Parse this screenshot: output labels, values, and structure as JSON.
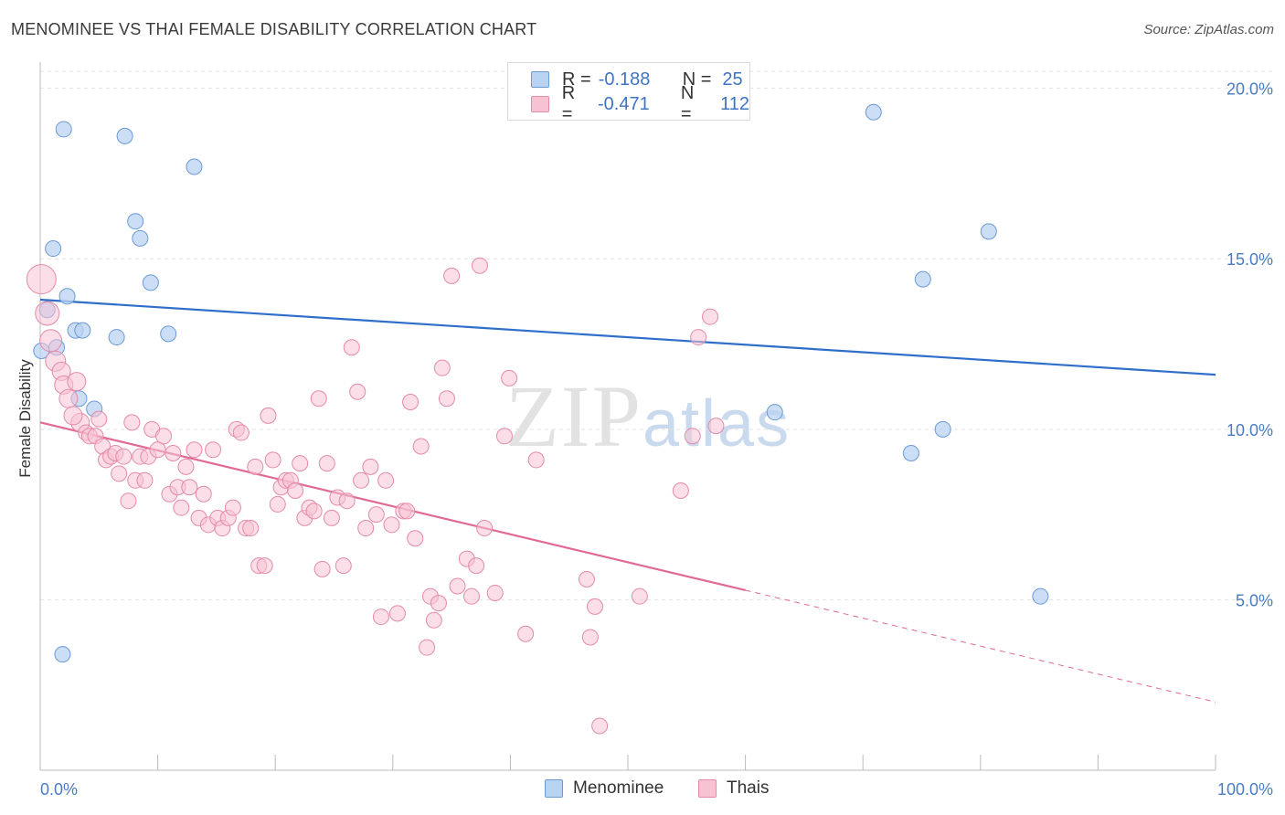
{
  "title": "MENOMINEE VS THAI FEMALE DISABILITY CORRELATION CHART",
  "source": "Source: ZipAtlas.com",
  "watermark": {
    "zip": "ZIP",
    "atlas": "atlas"
  },
  "colors": {
    "menominee_fill": "#b9d3f3",
    "menominee_stroke": "#6b9ad6",
    "menominee_line": "#2f6fcb",
    "thai_fill": "#f7c3d3",
    "thai_stroke": "#e58aa8",
    "thai_line": "#e06996",
    "tick_text": "#4a7cc4",
    "grid": "#e3e3e3"
  },
  "legend": {
    "rows": [
      {
        "r_label": "R =",
        "r_value": "-0.188",
        "n_label": "N =",
        "n_value": "25"
      },
      {
        "r_label": "R =",
        "r_value": "-0.471",
        "n_label": "N =",
        "n_value": "112"
      }
    ]
  },
  "bottom_legend": {
    "menominee": "Menominee",
    "thais": "Thais"
  },
  "chart_data": {
    "type": "scatter",
    "xlabel": "",
    "ylabel": "Female Disability",
    "xlim": [
      0,
      100
    ],
    "ylim": [
      0,
      20.5
    ],
    "x_tick_labels": [
      "0.0%",
      "100.0%"
    ],
    "y_ticks": [
      5,
      10,
      15,
      20
    ],
    "y_tick_labels": [
      "5.0%",
      "10.0%",
      "15.0%",
      "20.0%"
    ],
    "grid": true,
    "series": [
      {
        "name": "Menominee",
        "points": [
          [
            2.0,
            18.8
          ],
          [
            7.2,
            18.6
          ],
          [
            13.1,
            17.7
          ],
          [
            8.1,
            16.1
          ],
          [
            1.1,
            15.3
          ],
          [
            8.5,
            15.6
          ],
          [
            9.4,
            14.3
          ],
          [
            2.3,
            13.9
          ],
          [
            0.6,
            13.5
          ],
          [
            3.0,
            12.9
          ],
          [
            3.6,
            12.9
          ],
          [
            6.5,
            12.7
          ],
          [
            10.9,
            12.8
          ],
          [
            1.4,
            12.4
          ],
          [
            0.1,
            12.3
          ],
          [
            3.3,
            10.9
          ],
          [
            4.6,
            10.6
          ],
          [
            1.9,
            3.4
          ],
          [
            70.9,
            19.3
          ],
          [
            80.7,
            15.8
          ],
          [
            75.1,
            14.4
          ],
          [
            62.5,
            10.5
          ],
          [
            76.8,
            10.0
          ],
          [
            74.1,
            9.3
          ],
          [
            85.1,
            5.1
          ]
        ],
        "trend": {
          "x": [
            0,
            100
          ],
          "y": [
            13.8,
            11.6
          ],
          "dashed_from": null
        }
      },
      {
        "name": "Thais",
        "points": [
          [
            0.1,
            14.4
          ],
          [
            0.6,
            13.4
          ],
          [
            0.9,
            12.6
          ],
          [
            1.3,
            12.0
          ],
          [
            1.8,
            11.7
          ],
          [
            2.0,
            11.3
          ],
          [
            3.1,
            11.4
          ],
          [
            2.4,
            10.9
          ],
          [
            3.4,
            10.2
          ],
          [
            2.8,
            10.4
          ],
          [
            5.0,
            10.3
          ],
          [
            3.9,
            9.9
          ],
          [
            4.2,
            9.8
          ],
          [
            4.7,
            9.8
          ],
          [
            5.3,
            9.5
          ],
          [
            5.6,
            9.1
          ],
          [
            6.0,
            9.2
          ],
          [
            6.4,
            9.3
          ],
          [
            6.7,
            8.7
          ],
          [
            7.1,
            9.2
          ],
          [
            7.5,
            7.9
          ],
          [
            7.8,
            10.2
          ],
          [
            8.1,
            8.5
          ],
          [
            8.5,
            9.2
          ],
          [
            8.9,
            8.5
          ],
          [
            9.2,
            9.2
          ],
          [
            9.5,
            10.0
          ],
          [
            10.0,
            9.4
          ],
          [
            10.5,
            9.8
          ],
          [
            11.0,
            8.1
          ],
          [
            11.3,
            9.3
          ],
          [
            11.7,
            8.3
          ],
          [
            12.0,
            7.7
          ],
          [
            12.4,
            8.9
          ],
          [
            12.7,
            8.3
          ],
          [
            13.1,
            9.4
          ],
          [
            13.5,
            7.4
          ],
          [
            13.9,
            8.1
          ],
          [
            14.3,
            7.2
          ],
          [
            14.7,
            9.4
          ],
          [
            15.1,
            7.4
          ],
          [
            15.5,
            7.1
          ],
          [
            16.0,
            7.4
          ],
          [
            16.4,
            7.7
          ],
          [
            16.7,
            10.0
          ],
          [
            17.1,
            9.9
          ],
          [
            17.5,
            7.1
          ],
          [
            17.9,
            7.1
          ],
          [
            18.3,
            8.9
          ],
          [
            18.6,
            6.0
          ],
          [
            19.1,
            6.0
          ],
          [
            19.4,
            10.4
          ],
          [
            19.8,
            9.1
          ],
          [
            20.2,
            7.8
          ],
          [
            20.5,
            8.3
          ],
          [
            20.9,
            8.5
          ],
          [
            21.3,
            8.5
          ],
          [
            21.7,
            8.2
          ],
          [
            22.1,
            9.0
          ],
          [
            22.5,
            7.4
          ],
          [
            22.9,
            7.7
          ],
          [
            23.3,
            7.6
          ],
          [
            23.7,
            10.9
          ],
          [
            24.0,
            5.9
          ],
          [
            24.4,
            9.0
          ],
          [
            24.8,
            7.4
          ],
          [
            25.3,
            8.0
          ],
          [
            25.8,
            6.0
          ],
          [
            26.1,
            7.9
          ],
          [
            26.5,
            12.4
          ],
          [
            27.0,
            11.1
          ],
          [
            27.3,
            8.5
          ],
          [
            27.7,
            7.1
          ],
          [
            28.1,
            8.9
          ],
          [
            28.6,
            7.5
          ],
          [
            29.0,
            4.5
          ],
          [
            29.4,
            8.5
          ],
          [
            29.9,
            7.2
          ],
          [
            30.4,
            4.6
          ],
          [
            30.9,
            7.6
          ],
          [
            31.2,
            7.6
          ],
          [
            31.5,
            10.8
          ],
          [
            31.9,
            6.8
          ],
          [
            32.4,
            9.5
          ],
          [
            32.9,
            3.6
          ],
          [
            33.2,
            5.1
          ],
          [
            33.5,
            4.4
          ],
          [
            33.9,
            4.9
          ],
          [
            34.2,
            11.8
          ],
          [
            34.6,
            10.9
          ],
          [
            35.0,
            14.5
          ],
          [
            35.5,
            5.4
          ],
          [
            36.3,
            6.2
          ],
          [
            36.7,
            5.1
          ],
          [
            37.1,
            6.0
          ],
          [
            37.4,
            14.8
          ],
          [
            37.8,
            7.1
          ],
          [
            38.7,
            5.2
          ],
          [
            39.5,
            9.8
          ],
          [
            39.9,
            11.5
          ],
          [
            41.3,
            4.0
          ],
          [
            42.2,
            9.1
          ],
          [
            46.5,
            5.6
          ],
          [
            46.8,
            3.9
          ],
          [
            47.2,
            4.8
          ],
          [
            47.6,
            1.3
          ],
          [
            51.0,
            5.1
          ],
          [
            54.5,
            8.2
          ],
          [
            55.5,
            9.8
          ],
          [
            56.0,
            12.7
          ],
          [
            57.0,
            13.3
          ],
          [
            57.5,
            10.1
          ]
        ],
        "trend": {
          "x": [
            0,
            100
          ],
          "y": [
            10.2,
            2.0
          ],
          "dashed_from": 60.0
        }
      }
    ]
  }
}
